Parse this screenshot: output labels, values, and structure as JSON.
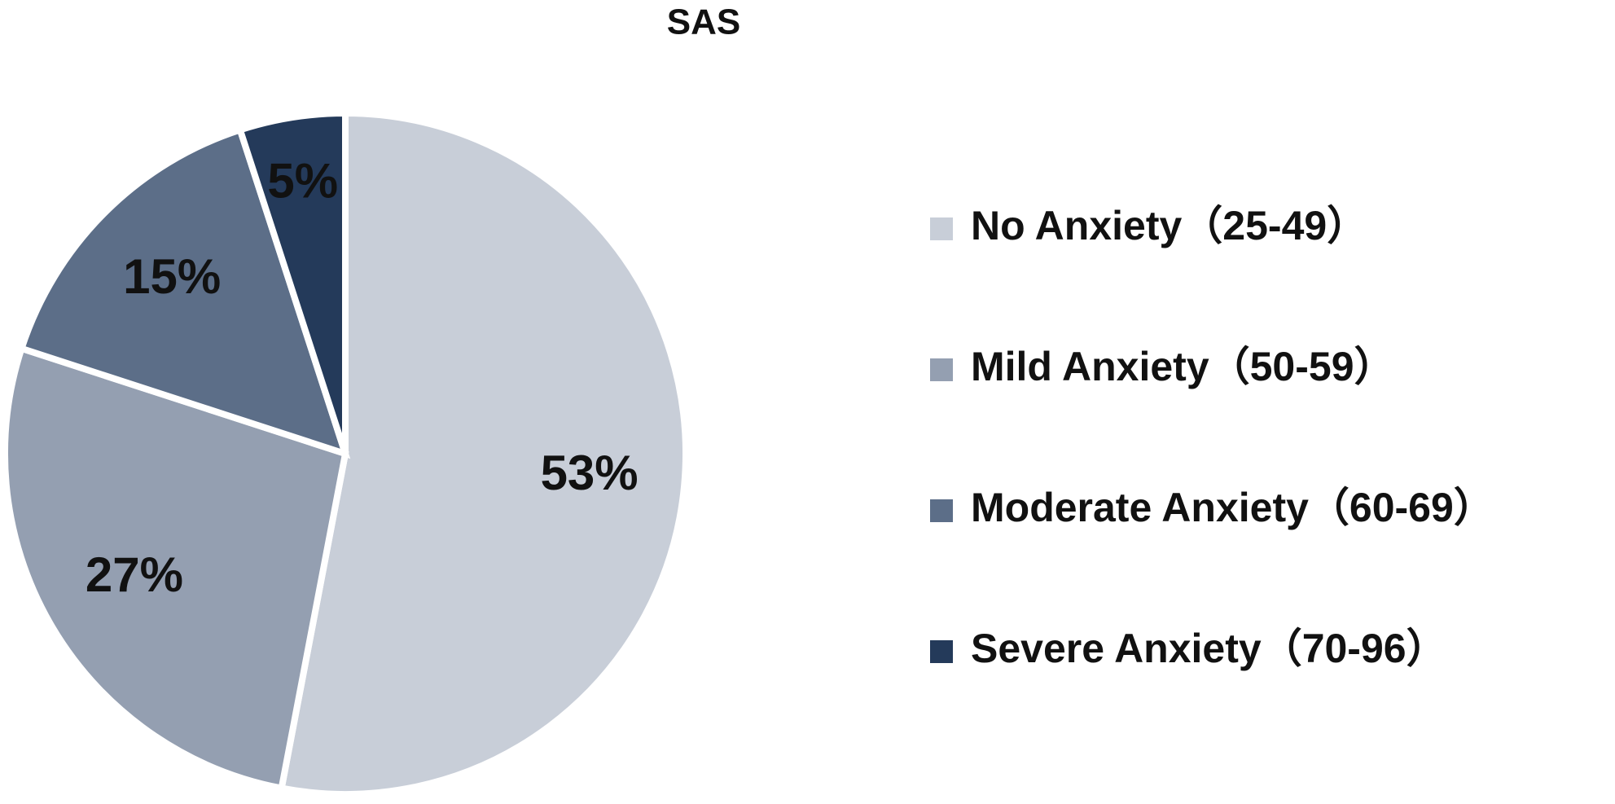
{
  "chart_data": {
    "type": "pie",
    "title": "SAS",
    "categories": [
      "No Anxiety（25-49）",
      "Mild Anxiety（50-59）",
      "Moderate Anxiety（60-69）",
      "Severe Anxiety（70-96）"
    ],
    "values": [
      53,
      27,
      15,
      5
    ],
    "value_labels": [
      "53%",
      "27%",
      "15%",
      "5%"
    ],
    "colors": [
      "#c8ced8",
      "#949fb1",
      "#5c6e88",
      "#243a5a"
    ],
    "legend": "right"
  }
}
